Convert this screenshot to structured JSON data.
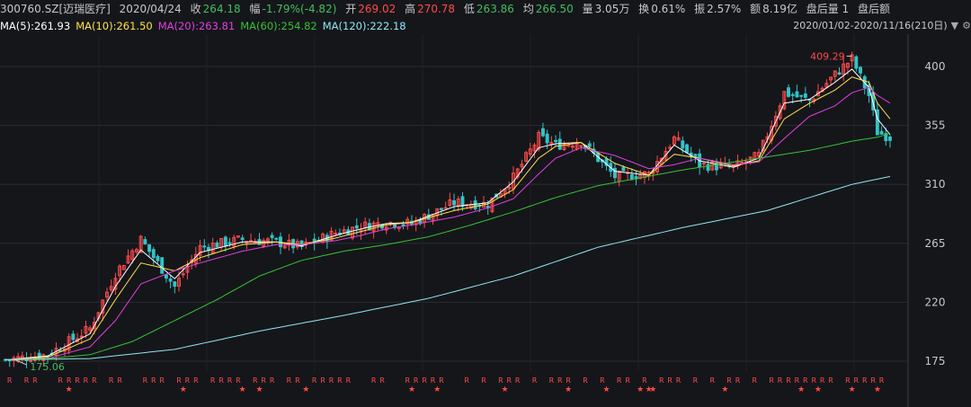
{
  "header": {
    "code": "300760.SZ[迈瑞医疗]",
    "date": "2020/04/24",
    "close_label": "收",
    "close_value": "264.18",
    "change_label": "幅",
    "change_value": "-1.79%(-4.82)",
    "open_label": "开",
    "open_value": "269.02",
    "high_label": "高",
    "high_value": "270.78",
    "low_label": "低",
    "low_value": "263.86",
    "avg_label": "均",
    "avg_value": "266.50",
    "vol_label": "量",
    "vol_value": "3.05万",
    "turn_label": "换",
    "turn_value": "0.61%",
    "amp_label": "振",
    "amp_value": "2.57%",
    "amt_label": "额",
    "amt_value": "8.19亿",
    "after_vol": "盘后量 1",
    "after_amt": "盘后额"
  },
  "ma_labels": [
    {
      "label": "MA(5):261.93",
      "color": "#ffffff"
    },
    {
      "label": "MA(10):261.50",
      "color": "#ffe14a"
    },
    {
      "label": "MA(20):263.81",
      "color": "#e040e0"
    },
    {
      "label": "MA(60):254.82",
      "color": "#35c235"
    },
    {
      "label": "MA(120):222.18",
      "color": "#8fe8f0"
    }
  ],
  "range": {
    "text": "2020/01/02-2020/11/16(210日)",
    "arrow": "▼",
    "settings": "⚙"
  },
  "colors": {
    "up": "#ff4a4a",
    "down": "#33c3c6",
    "bg": "#15161a",
    "grid": "#2b2d33",
    "axis_text": "#c8c8c8"
  },
  "chart_data": {
    "type": "candlestick",
    "start_date": "2020/01/02",
    "end_date": "2020/11/16",
    "days": 210,
    "ylim": [
      165,
      420
    ],
    "y_ticks": [
      175,
      220,
      265,
      310,
      355,
      400
    ],
    "annotations": [
      {
        "label": "409.29",
        "value": 409.29,
        "kind": "high"
      },
      {
        "label": "175.06",
        "value": 175.06,
        "kind": "low"
      }
    ],
    "close_path": [
      [
        0,
        176
      ],
      [
        10,
        180
      ],
      [
        20,
        200
      ],
      [
        26,
        242
      ],
      [
        32,
        268
      ],
      [
        40,
        232
      ],
      [
        46,
        262
      ],
      [
        56,
        268
      ],
      [
        64,
        266
      ],
      [
        70,
        262
      ],
      [
        78,
        273
      ],
      [
        84,
        278
      ],
      [
        90,
        281
      ],
      [
        96,
        280
      ],
      [
        106,
        296
      ],
      [
        114,
        295
      ],
      [
        120,
        315
      ],
      [
        126,
        346
      ],
      [
        130,
        340
      ],
      [
        136,
        343
      ],
      [
        144,
        316
      ],
      [
        152,
        318
      ],
      [
        158,
        345
      ],
      [
        164,
        325
      ],
      [
        172,
        323
      ],
      [
        178,
        332
      ],
      [
        184,
        380
      ],
      [
        190,
        374
      ],
      [
        196,
        394
      ],
      [
        200,
        406
      ],
      [
        204,
        378
      ],
      [
        206,
        350
      ],
      [
        209,
        346
      ]
    ],
    "ma_series": [
      {
        "name": "MA(5)",
        "color": "#ffffff",
        "path": [
          [
            0,
            176
          ],
          [
            10,
            179
          ],
          [
            20,
            196
          ],
          [
            26,
            232
          ],
          [
            32,
            260
          ],
          [
            40,
            238
          ],
          [
            46,
            258
          ],
          [
            56,
            266
          ],
          [
            64,
            266
          ],
          [
            70,
            263
          ],
          [
            78,
            271
          ],
          [
            84,
            276
          ],
          [
            90,
            280
          ],
          [
            96,
            281
          ],
          [
            106,
            293
          ],
          [
            114,
            296
          ],
          [
            120,
            312
          ],
          [
            126,
            338
          ],
          [
            130,
            341
          ],
          [
            136,
            342
          ],
          [
            144,
            320
          ],
          [
            152,
            317
          ],
          [
            158,
            340
          ],
          [
            164,
            328
          ],
          [
            172,
            323
          ],
          [
            178,
            330
          ],
          [
            184,
            372
          ],
          [
            190,
            375
          ],
          [
            196,
            388
          ],
          [
            200,
            398
          ],
          [
            204,
            384
          ],
          [
            206,
            360
          ],
          [
            209,
            348
          ]
        ]
      },
      {
        "name": "MA(10)",
        "color": "#ffe14a",
        "path": [
          [
            0,
            176
          ],
          [
            10,
            178
          ],
          [
            20,
            192
          ],
          [
            26,
            222
          ],
          [
            32,
            250
          ],
          [
            40,
            244
          ],
          [
            46,
            254
          ],
          [
            56,
            264
          ],
          [
            64,
            266
          ],
          [
            70,
            264
          ],
          [
            78,
            269
          ],
          [
            84,
            274
          ],
          [
            90,
            279
          ],
          [
            96,
            281
          ],
          [
            106,
            290
          ],
          [
            114,
            295
          ],
          [
            120,
            306
          ],
          [
            126,
            330
          ],
          [
            130,
            339
          ],
          [
            136,
            342
          ],
          [
            144,
            326
          ],
          [
            152,
            317
          ],
          [
            158,
            333
          ],
          [
            164,
            330
          ],
          [
            172,
            324
          ],
          [
            178,
            328
          ],
          [
            184,
            360
          ],
          [
            190,
            372
          ],
          [
            196,
            382
          ],
          [
            200,
            392
          ],
          [
            204,
            388
          ],
          [
            206,
            372
          ],
          [
            209,
            360
          ]
        ]
      },
      {
        "name": "MA(20)",
        "color": "#e040e0",
        "path": [
          [
            0,
            176
          ],
          [
            10,
            177
          ],
          [
            20,
            186
          ],
          [
            26,
            206
          ],
          [
            32,
            234
          ],
          [
            40,
            244
          ],
          [
            46,
            250
          ],
          [
            56,
            259
          ],
          [
            64,
            264
          ],
          [
            70,
            264
          ],
          [
            78,
            267
          ],
          [
            84,
            271
          ],
          [
            90,
            276
          ],
          [
            96,
            279
          ],
          [
            106,
            285
          ],
          [
            114,
            292
          ],
          [
            120,
            299
          ],
          [
            126,
            318
          ],
          [
            130,
            330
          ],
          [
            136,
            338
          ],
          [
            144,
            332
          ],
          [
            152,
            322
          ],
          [
            158,
            325
          ],
          [
            164,
            330
          ],
          [
            172,
            325
          ],
          [
            178,
            327
          ],
          [
            184,
            345
          ],
          [
            190,
            362
          ],
          [
            196,
            370
          ],
          [
            200,
            380
          ],
          [
            204,
            384
          ],
          [
            206,
            378
          ],
          [
            209,
            372
          ]
        ]
      },
      {
        "name": "MA(60)",
        "color": "#35c235",
        "path": [
          [
            0,
            176
          ],
          [
            10,
            177
          ],
          [
            20,
            180
          ],
          [
            30,
            190
          ],
          [
            40,
            206
          ],
          [
            50,
            222
          ],
          [
            60,
            240
          ],
          [
            70,
            252
          ],
          [
            80,
            259
          ],
          [
            90,
            264
          ],
          [
            100,
            270
          ],
          [
            110,
            279
          ],
          [
            120,
            289
          ],
          [
            130,
            300
          ],
          [
            140,
            309
          ],
          [
            150,
            315
          ],
          [
            160,
            321
          ],
          [
            170,
            326
          ],
          [
            180,
            331
          ],
          [
            190,
            336
          ],
          [
            200,
            343
          ],
          [
            206,
            346
          ],
          [
            209,
            349
          ]
        ]
      },
      {
        "name": "MA(120)",
        "color": "#8fe8f0",
        "path": [
          [
            0,
            176
          ],
          [
            20,
            177
          ],
          [
            40,
            184
          ],
          [
            60,
            198
          ],
          [
            80,
            210
          ],
          [
            100,
            223
          ],
          [
            120,
            240
          ],
          [
            140,
            262
          ],
          [
            160,
            277
          ],
          [
            180,
            290
          ],
          [
            200,
            310
          ],
          [
            209,
            316
          ]
        ]
      }
    ]
  },
  "flags": {
    "r_text": "R",
    "star_text": "★",
    "r_columns": [
      1,
      5,
      7,
      13,
      15,
      17,
      19,
      21,
      25,
      27,
      33,
      35,
      37,
      41,
      43,
      45,
      49,
      51,
      53,
      55,
      59,
      61,
      63,
      67,
      69,
      73,
      75,
      77,
      79,
      81,
      87,
      89,
      95,
      97,
      99,
      101,
      103,
      109,
      113,
      117,
      119,
      121,
      125,
      129,
      131,
      133,
      137,
      141,
      145,
      147,
      151,
      155,
      157,
      159,
      163,
      167,
      171,
      173,
      177,
      181,
      183,
      185,
      187,
      189,
      191,
      193,
      195,
      199,
      201,
      203,
      205,
      207
    ],
    "star_columns": [
      15,
      42,
      56,
      60,
      71,
      96,
      102,
      118,
      133,
      142,
      150,
      152,
      153,
      170,
      188,
      192,
      200,
      206
    ]
  }
}
